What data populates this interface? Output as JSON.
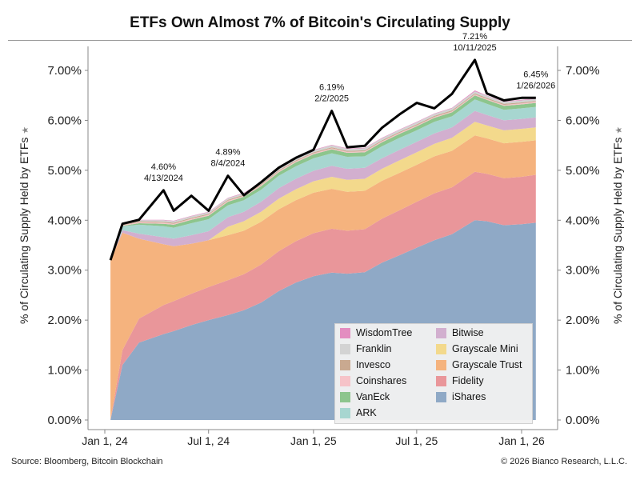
{
  "header": {
    "title": "ETFs Own Almost 7% of Bitcoin's Circulating Supply"
  },
  "footer": {
    "source": "Source: Bloomberg, Bitcoin Blockchain",
    "copyright": "© 2026 Bianco Research, L.L.C."
  },
  "chart_data": {
    "type": "area",
    "stacked": true,
    "title": "ETFs Own Almost 7% of Bitcoin's Circulating Supply",
    "ylabel": "% of Circulating Supply Held by ETFs",
    "ylabel_right": "% of Circulating Supply Held by ETFs",
    "xlabel": "",
    "ylim": [
      0,
      7.5
    ],
    "y_ticks": [
      "0.00%",
      "1.00%",
      "2.00%",
      "3.00%",
      "4.00%",
      "5.00%",
      "6.00%",
      "7.00%"
    ],
    "y_tick_values": [
      0,
      1,
      2,
      3,
      4,
      5,
      6,
      7
    ],
    "x_tick_labels": [
      "Jan 1, 24",
      "Jul 1, 24",
      "Jan 1, 25",
      "Jul 1, 25",
      "Jan 1, 26"
    ],
    "x_tick_dates": [
      "2024-01-01",
      "2024-07-01",
      "2025-01-01",
      "2025-07-01",
      "2026-01-01"
    ],
    "x_range": [
      "2023-12-01",
      "2026-03-01"
    ],
    "grid": false,
    "legend_position": "bottom-right",
    "x": [
      "2024-01-11",
      "2024-02-01",
      "2024-03-01",
      "2024-04-13",
      "2024-05-01",
      "2024-06-01",
      "2024-07-01",
      "2024-08-04",
      "2024-09-01",
      "2024-10-01",
      "2024-11-01",
      "2024-12-01",
      "2025-01-01",
      "2025-02-02",
      "2025-03-01",
      "2025-04-01",
      "2025-05-01",
      "2025-06-01",
      "2025-07-01",
      "2025-08-01",
      "2025-09-01",
      "2025-10-11",
      "2025-11-01",
      "2025-12-01",
      "2026-01-01",
      "2026-01-26"
    ],
    "series": [
      {
        "name": "iShares",
        "color": "#8fa9c6",
        "values": [
          0.0,
          1.1,
          1.55,
          1.72,
          1.78,
          1.9,
          2.0,
          2.1,
          2.2,
          2.35,
          2.58,
          2.75,
          2.88,
          2.95,
          2.93,
          2.96,
          3.15,
          3.3,
          3.45,
          3.6,
          3.72,
          4.0,
          3.98,
          3.9,
          3.92,
          3.95
        ]
      },
      {
        "name": "Fidelity",
        "color": "#e9969a",
        "values": [
          0.0,
          0.3,
          0.48,
          0.58,
          0.6,
          0.63,
          0.66,
          0.7,
          0.72,
          0.76,
          0.8,
          0.83,
          0.86,
          0.88,
          0.86,
          0.86,
          0.88,
          0.9,
          0.92,
          0.94,
          0.94,
          0.97,
          0.95,
          0.94,
          0.95,
          0.96
        ]
      },
      {
        "name": "Grayscale Trust",
        "color": "#f5b37e",
        "values": [
          3.2,
          2.35,
          1.6,
          1.22,
          1.1,
          1.0,
          0.94,
          0.9,
          0.87,
          0.86,
          0.84,
          0.82,
          0.81,
          0.8,
          0.78,
          0.77,
          0.76,
          0.75,
          0.74,
          0.74,
          0.73,
          0.73,
          0.71,
          0.7,
          0.7,
          0.69
        ]
      },
      {
        "name": "Grayscale Mini",
        "color": "#f3d98c",
        "values": [
          0.0,
          0.0,
          0.0,
          0.0,
          0.0,
          0.0,
          0.0,
          0.17,
          0.19,
          0.2,
          0.21,
          0.22,
          0.23,
          0.24,
          0.24,
          0.24,
          0.24,
          0.25,
          0.25,
          0.25,
          0.26,
          0.27,
          0.26,
          0.26,
          0.26,
          0.26
        ]
      },
      {
        "name": "Bitwise",
        "color": "#d2afcf",
        "values": [
          0.0,
          0.05,
          0.1,
          0.14,
          0.15,
          0.17,
          0.18,
          0.19,
          0.19,
          0.2,
          0.21,
          0.21,
          0.21,
          0.22,
          0.22,
          0.22,
          0.21,
          0.21,
          0.21,
          0.21,
          0.21,
          0.22,
          0.21,
          0.2,
          0.2,
          0.2
        ]
      },
      {
        "name": "ARK",
        "color": "#a7d6d0",
        "values": [
          0.0,
          0.08,
          0.18,
          0.22,
          0.22,
          0.24,
          0.24,
          0.24,
          0.23,
          0.24,
          0.25,
          0.25,
          0.25,
          0.25,
          0.24,
          0.23,
          0.24,
          0.24,
          0.23,
          0.23,
          0.22,
          0.23,
          0.22,
          0.21,
          0.21,
          0.21
        ]
      },
      {
        "name": "VanEck",
        "color": "#8dc58d",
        "values": [
          0.0,
          0.01,
          0.03,
          0.05,
          0.06,
          0.07,
          0.07,
          0.07,
          0.07,
          0.07,
          0.07,
          0.08,
          0.08,
          0.08,
          0.08,
          0.08,
          0.08,
          0.08,
          0.08,
          0.08,
          0.08,
          0.08,
          0.08,
          0.08,
          0.08,
          0.08
        ]
      },
      {
        "name": "Coinshares",
        "color": "#f6c3c8",
        "values": [
          0.0,
          0.01,
          0.02,
          0.02,
          0.02,
          0.02,
          0.02,
          0.02,
          0.02,
          0.02,
          0.02,
          0.02,
          0.02,
          0.02,
          0.02,
          0.02,
          0.02,
          0.02,
          0.02,
          0.02,
          0.02,
          0.02,
          0.02,
          0.02,
          0.02,
          0.02
        ]
      },
      {
        "name": "Invesco",
        "color": "#c9a990",
        "values": [
          0.0,
          0.01,
          0.02,
          0.02,
          0.02,
          0.02,
          0.02,
          0.02,
          0.02,
          0.02,
          0.02,
          0.02,
          0.02,
          0.02,
          0.02,
          0.02,
          0.02,
          0.02,
          0.02,
          0.02,
          0.02,
          0.02,
          0.02,
          0.02,
          0.02,
          0.02
        ]
      },
      {
        "name": "Franklin",
        "color": "#d3d3d3",
        "values": [
          0.0,
          0.01,
          0.02,
          0.03,
          0.03,
          0.03,
          0.03,
          0.03,
          0.03,
          0.03,
          0.04,
          0.04,
          0.04,
          0.04,
          0.04,
          0.04,
          0.04,
          0.04,
          0.04,
          0.04,
          0.04,
          0.04,
          0.04,
          0.04,
          0.04,
          0.04
        ]
      },
      {
        "name": "WisdomTree",
        "color": "#e38dc0",
        "values": [
          0.0,
          0.01,
          0.01,
          0.01,
          0.01,
          0.01,
          0.01,
          0.01,
          0.01,
          0.01,
          0.01,
          0.01,
          0.01,
          0.01,
          0.01,
          0.01,
          0.01,
          0.01,
          0.01,
          0.01,
          0.01,
          0.02,
          0.01,
          0.01,
          0.01,
          0.01
        ]
      }
    ],
    "total_line": {
      "color": "#000000",
      "values": [
        3.2,
        3.93,
        4.01,
        4.6,
        4.19,
        4.49,
        4.19,
        4.89,
        4.5,
        4.76,
        5.05,
        5.25,
        5.41,
        6.19,
        5.46,
        5.49,
        5.85,
        6.12,
        6.35,
        6.24,
        6.53,
        7.21,
        6.54,
        6.4,
        6.45,
        6.45
      ]
    },
    "legend_order": [
      "WisdomTree",
      "Bitwise",
      "Franklin",
      "Grayscale Mini",
      "Invesco",
      "Grayscale Trust",
      "Coinshares",
      "Fidelity",
      "VanEck",
      "iShares",
      "ARK"
    ],
    "annotations": [
      {
        "value_text": "4.60%",
        "date_text": "4/13/2024",
        "x": "2024-04-13",
        "y": 4.6
      },
      {
        "value_text": "4.89%",
        "date_text": "8/4/2024",
        "x": "2024-08-04",
        "y": 4.89
      },
      {
        "value_text": "6.19%",
        "date_text": "2/2/2025",
        "x": "2025-02-02",
        "y": 6.19
      },
      {
        "value_text": "7.21%",
        "date_text": "10/11/2025",
        "x": "2025-10-11",
        "y": 7.21
      },
      {
        "value_text": "6.45%",
        "date_text": "1/26/2026",
        "x": "2026-01-26",
        "y": 6.45
      }
    ]
  }
}
